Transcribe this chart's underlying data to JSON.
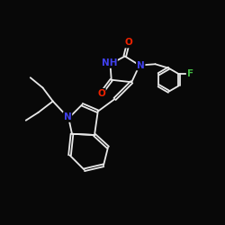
{
  "background_color": "#080808",
  "bond_color": "#e8e8e8",
  "atom_colors": {
    "N": "#4040ee",
    "O": "#ee2200",
    "F": "#44bb44",
    "C": "#e8e8e8"
  },
  "figsize": [
    2.5,
    2.5
  ],
  "dpi": 100,
  "lw": 1.3,
  "fs": 7.5
}
